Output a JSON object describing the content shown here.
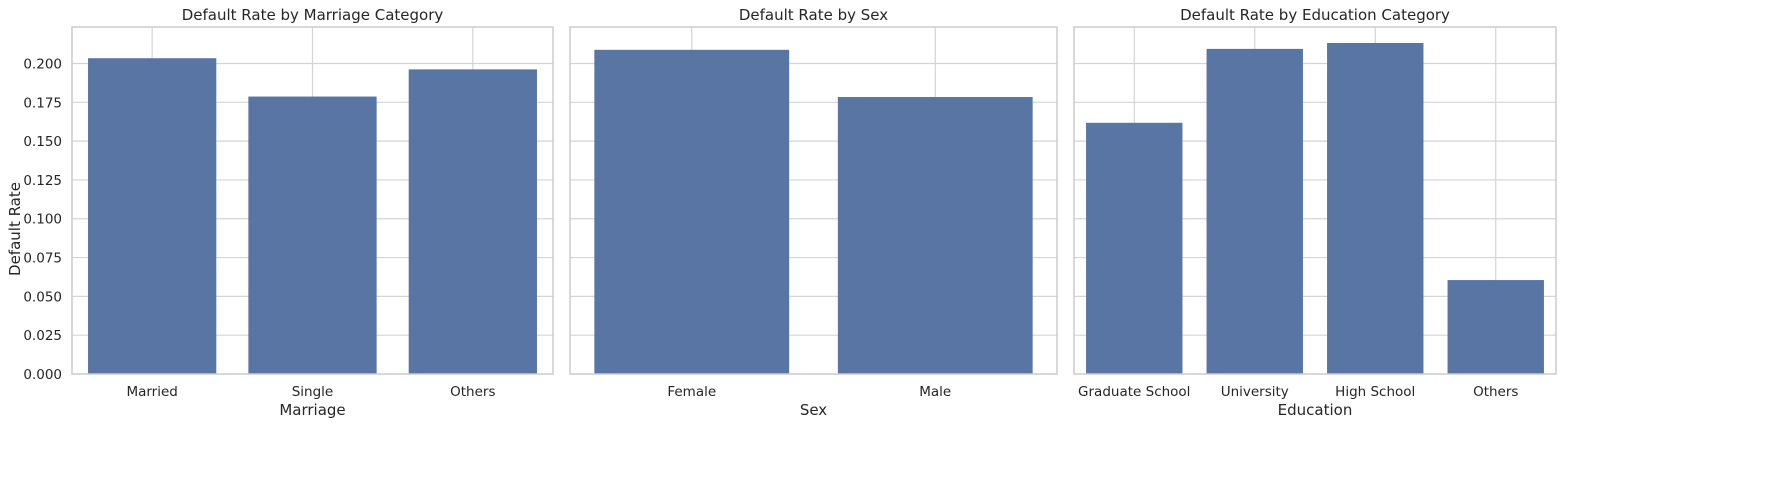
{
  "colors": {
    "bar": "#5875a4",
    "grid": "#d4d4d4",
    "frame": "#cccccc",
    "text": "#262626",
    "background": "#ffffff"
  },
  "shared_ylabel": "Default Rate",
  "chart_data": [
    {
      "type": "bar",
      "title": "Default Rate by Marriage Category",
      "xlabel": "Marriage",
      "ylabel": "Default Rate",
      "categories": [
        "Married",
        "Single",
        "Others"
      ],
      "values": [
        0.2034,
        0.1787,
        0.1962
      ],
      "ylim": [
        0,
        0.2235
      ],
      "yticks": [
        "0.000",
        "0.025",
        "0.050",
        "0.075",
        "0.100",
        "0.125",
        "0.150",
        "0.175",
        "0.200"
      ],
      "grid": true,
      "legend": "none"
    },
    {
      "type": "bar",
      "title": "Default Rate by Sex",
      "xlabel": "Sex",
      "ylabel": "",
      "categories": [
        "Female",
        "Male"
      ],
      "values": [
        0.2088,
        0.1784
      ],
      "ylim": [
        0,
        0.2235
      ],
      "grid": true,
      "legend": "none"
    },
    {
      "type": "bar",
      "title": "Default Rate by Education Category",
      "xlabel": "Education",
      "ylabel": "",
      "categories": [
        "Graduate School",
        "University",
        "High School",
        "Others"
      ],
      "values": [
        0.1618,
        0.2094,
        0.2132,
        0.0605
      ],
      "ylim": [
        0,
        0.2235
      ],
      "grid": true,
      "legend": "none"
    }
  ]
}
